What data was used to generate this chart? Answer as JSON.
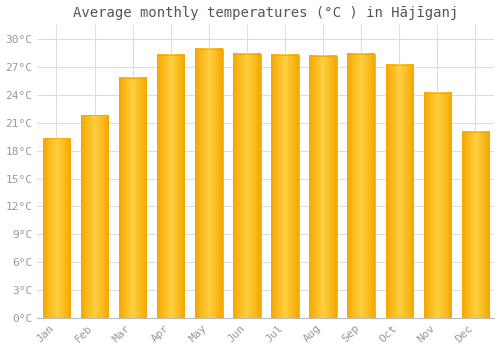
{
  "title": "Average monthly temperatures (°C ) in Hājīganj",
  "months": [
    "Jan",
    "Feb",
    "Mar",
    "Apr",
    "May",
    "Jun",
    "Jul",
    "Aug",
    "Sep",
    "Oct",
    "Nov",
    "Dec"
  ],
  "values": [
    19.3,
    21.8,
    25.8,
    28.3,
    28.9,
    28.4,
    28.3,
    28.2,
    28.4,
    27.2,
    24.2,
    20.0
  ],
  "bar_color_center": "#FFD040",
  "bar_color_edge": "#F5A800",
  "background_color": "#FFFFFF",
  "grid_color": "#DDDDDD",
  "ytick_labels": [
    "0°C",
    "3°C",
    "6°C",
    "9°C",
    "12°C",
    "15°C",
    "18°C",
    "21°C",
    "24°C",
    "27°C",
    "30°C"
  ],
  "ytick_values": [
    0,
    3,
    6,
    9,
    12,
    15,
    18,
    21,
    24,
    27,
    30
  ],
  "ylim": [
    0,
    31.5
  ],
  "title_fontsize": 10,
  "tick_fontsize": 8,
  "label_color": "#999999",
  "title_color": "#555555",
  "bar_width": 0.72
}
